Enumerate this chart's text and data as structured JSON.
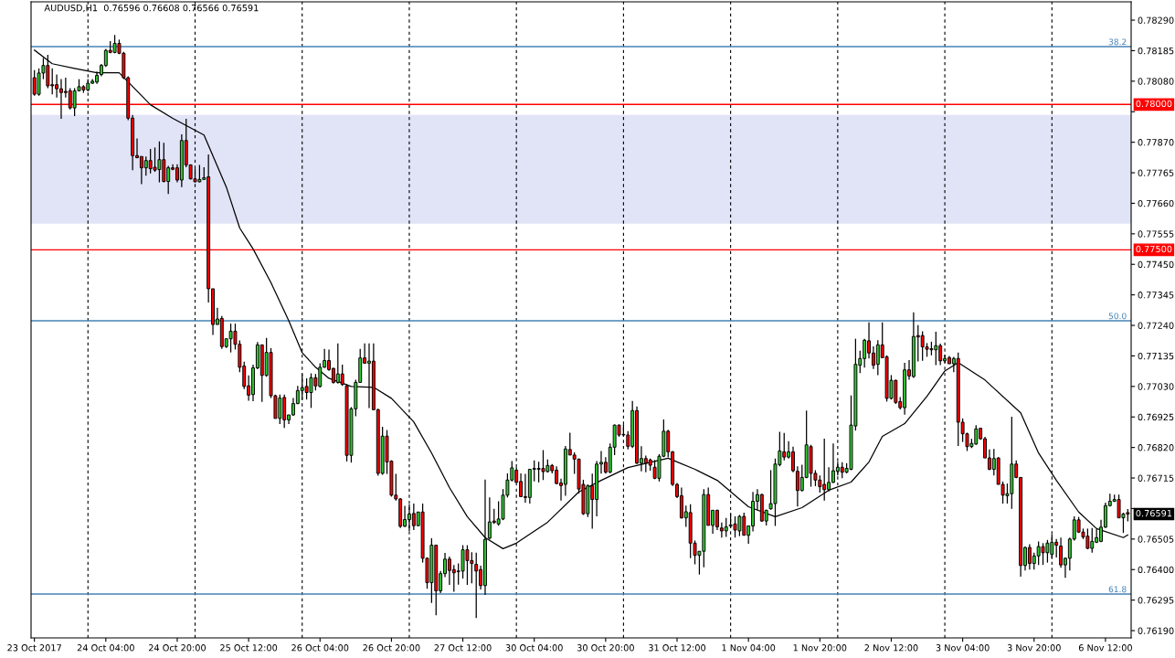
{
  "chart_data": {
    "type": "candlestick",
    "title": "AUDUSD,H1  0.76596 0.76608 0.76566 0.76591",
    "categories": [
      "23 Oct 2017",
      null,
      null,
      null,
      null,
      null,
      null,
      null,
      null,
      null,
      null,
      null,
      null,
      null,
      null,
      null,
      "24 Oct 04:00",
      null,
      null,
      null,
      null,
      null,
      null,
      null,
      null,
      null,
      null,
      null,
      null,
      null,
      null,
      null,
      "24 Oct 20:00",
      null,
      null,
      null,
      null,
      null,
      null,
      null,
      null,
      null,
      null,
      null,
      null,
      null,
      null,
      null,
      "25 Oct 12:00",
      null,
      null,
      null,
      null,
      null,
      null,
      null,
      null,
      null,
      null,
      null,
      null,
      null,
      null,
      null,
      "26 Oct 04:00",
      null,
      null,
      null,
      null,
      null,
      null,
      null,
      null,
      null,
      null,
      null,
      null,
      null,
      null,
      null,
      "26 Oct 20:00",
      null,
      null,
      null,
      null,
      null,
      null,
      null,
      null,
      null,
      null,
      null,
      null,
      null,
      null,
      null,
      "27 Oct 12:00",
      null,
      null,
      null,
      null,
      null,
      null,
      null,
      null,
      null,
      null,
      null,
      null,
      null,
      null,
      null,
      "30 Oct 04:00",
      null,
      null,
      null,
      null,
      null,
      null,
      null,
      null,
      null,
      null,
      null,
      null,
      null,
      null,
      null,
      "30 Oct 20:00",
      null,
      null,
      null,
      null,
      null,
      null,
      null,
      null,
      null,
      null,
      null,
      null,
      null,
      null,
      null,
      "31 Oct 12:00",
      null,
      null,
      null,
      null,
      null,
      null,
      null,
      null,
      null,
      null,
      null,
      null,
      null,
      null,
      null,
      "1 Nov 04:00",
      null,
      null,
      null,
      null,
      null,
      null,
      null,
      null,
      null,
      null,
      null,
      null,
      null,
      null,
      null,
      "1 Nov 20:00",
      null,
      null,
      null,
      null,
      null,
      null,
      null,
      null,
      null,
      null,
      null,
      null,
      null,
      null,
      null,
      "2 Nov 12:00",
      null,
      null,
      null,
      null,
      null,
      null,
      null,
      null,
      null,
      null,
      null,
      null,
      null,
      null,
      null,
      "3 Nov 04:00",
      null,
      null,
      null,
      null,
      null,
      null,
      null,
      null,
      null,
      null,
      null,
      null,
      null,
      null,
      null,
      "3 Nov 20:00",
      null,
      null,
      null,
      null,
      null,
      null,
      null,
      null,
      null,
      null,
      null,
      null,
      null,
      null,
      null,
      "6 Nov 12:00",
      null,
      null,
      null,
      null,
      null
    ],
    "ylim": [
      0.76165,
      0.78353
    ],
    "yticks": [
      {
        "value": 0.7829,
        "label": "0.78290"
      },
      {
        "value": 0.78185,
        "label": "0.78185"
      },
      {
        "value": 0.7808,
        "label": "0.78080"
      },
      {
        "value": 0.77975,
        "label": null
      },
      {
        "value": 0.7787,
        "label": "0.77870"
      },
      {
        "value": 0.77765,
        "label": "0.77765"
      },
      {
        "value": 0.7766,
        "label": "0.77660"
      },
      {
        "value": 0.77555,
        "label": "0.77555"
      },
      {
        "value": 0.7745,
        "label": "0.77450"
      },
      {
        "value": 0.77345,
        "label": "0.77345"
      },
      {
        "value": 0.7724,
        "label": "0.77240"
      },
      {
        "value": 0.77135,
        "label": "0.77135"
      },
      {
        "value": 0.7703,
        "label": "0.77030"
      },
      {
        "value": 0.76925,
        "label": "0.76925"
      },
      {
        "value": 0.7682,
        "label": "0.76820"
      },
      {
        "value": 0.76715,
        "label": "0.76715"
      },
      {
        "value": 0.7661,
        "label": null
      },
      {
        "value": 0.76505,
        "label": "0.76505"
      },
      {
        "value": 0.764,
        "label": "0.76400"
      },
      {
        "value": 0.76295,
        "label": "0.76295"
      },
      {
        "value": 0.7619,
        "label": "0.76190"
      }
    ],
    "bands": [
      {
        "axis": "y",
        "from": 0.7759,
        "to": 0.77964,
        "color": "#e1e3f7"
      }
    ],
    "ref_lines": [
      {
        "axis": "y",
        "value": 0.78,
        "label": "0.78000",
        "color": "#ff0000"
      },
      {
        "axis": "y",
        "value": 0.775,
        "label": "0.77500",
        "color": "#ff0000"
      },
      {
        "axis": "y",
        "value": 0.78199,
        "color": "#4682b4"
      },
      {
        "axis": "y",
        "value": 0.77256,
        "color": "#4682b4"
      },
      {
        "axis": "y",
        "value": 0.76316,
        "color": "#4682b4"
      }
    ],
    "annotations": [
      "0.76591",
      {
        "text": "38.2",
        "y": 0.78199
      },
      {
        "text": "50.0",
        "y": 0.77256
      },
      {
        "text": "61.8",
        "y": 0.76316
      }
    ],
    "ohlc": [
      [
        0.78092,
        0.78118,
        0.7803,
        0.78035
      ],
      [
        0.78035,
        0.78124,
        0.7803,
        0.78108
      ],
      [
        0.78108,
        0.7816,
        0.78087,
        0.78134
      ],
      [
        0.78134,
        0.78171,
        0.78056,
        0.78064
      ],
      [
        0.78068,
        0.78124,
        0.78035,
        0.78064
      ],
      [
        0.78068,
        0.78103,
        0.78024,
        0.78054
      ],
      [
        0.78054,
        0.78087,
        0.77951,
        0.78041
      ],
      [
        0.78045,
        0.78092,
        0.78024,
        0.78041
      ],
      [
        0.78047,
        0.78056,
        0.77983,
        0.77988
      ],
      [
        0.77988,
        0.78056,
        0.7796,
        0.78047
      ],
      [
        0.78047,
        0.78087,
        0.78045,
        0.78061
      ],
      [
        0.78061,
        0.78066,
        0.7804,
        0.7805
      ],
      [
        0.7805,
        0.78087,
        0.78045,
        0.78073
      ],
      [
        0.78073,
        0.78087,
        0.78071,
        0.7808
      ],
      [
        0.78077,
        0.78113,
        0.78071,
        0.781
      ],
      [
        0.78103,
        0.78139,
        0.78097,
        0.78134
      ],
      [
        0.78134,
        0.78191,
        0.78129,
        0.78186
      ],
      [
        0.78186,
        0.78218,
        0.78176,
        0.78179
      ],
      [
        0.78179,
        0.78239,
        0.78176,
        0.7821
      ],
      [
        0.7821,
        0.78223,
        0.78173,
        0.78176
      ],
      [
        0.78176,
        0.78181,
        0.78087,
        0.78092
      ],
      [
        0.78092,
        0.78097,
        0.77946,
        0.77953
      ],
      [
        0.77953,
        0.77964,
        0.77774,
        0.77824
      ],
      [
        0.77824,
        0.77883,
        0.77815,
        0.77817
      ],
      [
        0.77821,
        0.77821,
        0.77726,
        0.77782
      ],
      [
        0.77782,
        0.77821,
        0.77755,
        0.77807
      ],
      [
        0.77807,
        0.77847,
        0.77763,
        0.77779
      ],
      [
        0.77784,
        0.77852,
        0.77768,
        0.77774
      ],
      [
        0.77776,
        0.77873,
        0.77732,
        0.7781
      ],
      [
        0.7781,
        0.77868,
        0.77732,
        0.77735
      ],
      [
        0.77735,
        0.77789,
        0.77692,
        0.77782
      ],
      [
        0.77782,
        0.77794,
        0.77774,
        0.77777
      ],
      [
        0.77782,
        0.77794,
        0.77732,
        0.7774
      ],
      [
        0.7774,
        0.77897,
        0.77716,
        0.77876
      ],
      [
        0.77876,
        0.77951,
        0.77784,
        0.77792
      ],
      [
        0.77792,
        0.77794,
        0.77742,
        0.77744
      ],
      [
        0.77744,
        0.77779,
        0.77732,
        0.77734
      ],
      [
        0.77734,
        0.77792,
        0.77732,
        0.77742
      ],
      [
        0.77742,
        0.77784,
        0.77742,
        0.77748
      ],
      [
        0.77751,
        0.77828,
        0.77319,
        0.77366
      ],
      [
        0.77366,
        0.77366,
        0.77207,
        0.77243
      ],
      [
        0.77243,
        0.77301,
        0.77243,
        0.77262
      ],
      [
        0.77264,
        0.77272,
        0.77159,
        0.77167
      ],
      [
        0.77167,
        0.77194,
        0.77162,
        0.77194
      ],
      [
        0.77194,
        0.77246,
        0.77147,
        0.7722
      ],
      [
        0.7722,
        0.77246,
        0.77157,
        0.77175
      ],
      [
        0.77175,
        0.77188,
        0.77079,
        0.77096
      ],
      [
        0.771,
        0.77115,
        0.77021,
        0.7703
      ],
      [
        0.77032,
        0.77068,
        0.76981,
        0.77
      ],
      [
        0.77002,
        0.77105,
        0.76979,
        0.77094
      ],
      [
        0.77094,
        0.77183,
        0.77089,
        0.77173
      ],
      [
        0.77173,
        0.77173,
        0.76977,
        0.77068
      ],
      [
        0.77068,
        0.77197,
        0.77063,
        0.77147
      ],
      [
        0.77147,
        0.77162,
        0.7699,
        0.76998
      ],
      [
        0.76998,
        0.77002,
        0.7692,
        0.7692
      ],
      [
        0.7692,
        0.77002,
        0.76901,
        0.7699
      ],
      [
        0.76992,
        0.77002,
        0.76887,
        0.76915
      ],
      [
        0.76915,
        0.76932,
        0.76901,
        0.76932
      ],
      [
        0.76932,
        0.7699,
        0.76929,
        0.76971
      ],
      [
        0.76971,
        0.77032,
        0.76969,
        0.77016
      ],
      [
        0.77016,
        0.77073,
        0.76985,
        0.77026
      ],
      [
        0.7703,
        0.77058,
        0.76985,
        0.77009
      ],
      [
        0.77009,
        0.77075,
        0.76956,
        0.7706
      ],
      [
        0.7706,
        0.77073,
        0.77016,
        0.77032
      ],
      [
        0.7703,
        0.7711,
        0.77026,
        0.77096
      ],
      [
        0.77096,
        0.77159,
        0.77094,
        0.77119
      ],
      [
        0.77119,
        0.77157,
        0.77084,
        0.77088
      ],
      [
        0.77092,
        0.77094,
        0.7704,
        0.77044
      ],
      [
        0.77044,
        0.77178,
        0.7704,
        0.77073
      ],
      [
        0.77073,
        0.77105,
        0.77032,
        0.77037
      ],
      [
        0.77032,
        0.77037,
        0.76772,
        0.76793
      ],
      [
        0.76793,
        0.76959,
        0.76768,
        0.76953
      ],
      [
        0.76953,
        0.77053,
        0.76927,
        0.77044
      ],
      [
        0.77044,
        0.77159,
        0.77042,
        0.77128
      ],
      [
        0.77128,
        0.77178,
        0.7711,
        0.7711
      ],
      [
        0.7711,
        0.77178,
        0.76956,
        0.77117
      ],
      [
        0.77117,
        0.77178,
        0.76948,
        0.7695
      ],
      [
        0.7695,
        0.76953,
        0.76723,
        0.76731
      ],
      [
        0.76731,
        0.76891,
        0.76726,
        0.76859
      ],
      [
        0.76859,
        0.7688,
        0.76729,
        0.7677
      ],
      [
        0.76773,
        0.76776,
        0.76651,
        0.76656
      ],
      [
        0.76656,
        0.76729,
        0.76637,
        0.76643
      ],
      [
        0.76643,
        0.76646,
        0.76543,
        0.76549
      ],
      [
        0.76549,
        0.76619,
        0.76546,
        0.76572
      ],
      [
        0.76572,
        0.76625,
        0.76533,
        0.76591
      ],
      [
        0.76593,
        0.76627,
        0.76536,
        0.76551
      ],
      [
        0.76551,
        0.76598,
        0.76549,
        0.76598
      ],
      [
        0.76598,
        0.76627,
        0.76424,
        0.76439
      ],
      [
        0.76439,
        0.76442,
        0.76334,
        0.76355
      ],
      [
        0.76355,
        0.76508,
        0.76285,
        0.76484
      ],
      [
        0.76484,
        0.76484,
        0.76243,
        0.76327
      ],
      [
        0.76327,
        0.76395,
        0.76319,
        0.76386
      ],
      [
        0.76386,
        0.76457,
        0.76374,
        0.76436
      ],
      [
        0.76436,
        0.76445,
        0.76347,
        0.76397
      ],
      [
        0.764,
        0.76416,
        0.76324,
        0.76389
      ],
      [
        0.76395,
        0.76421,
        0.76348,
        0.76393
      ],
      [
        0.76395,
        0.76484,
        0.76369,
        0.76468
      ],
      [
        0.76468,
        0.76484,
        0.76347,
        0.76431
      ],
      [
        0.76431,
        0.7646,
        0.76353,
        0.76421
      ],
      [
        0.76418,
        0.76458,
        0.76233,
        0.76395
      ],
      [
        0.764,
        0.76413,
        0.76332,
        0.76345
      ],
      [
        0.76345,
        0.7671,
        0.76313,
        0.76504
      ],
      [
        0.76508,
        0.76648,
        0.76504,
        0.76564
      ],
      [
        0.76567,
        0.76609,
        0.76557,
        0.76562
      ],
      [
        0.76557,
        0.76635,
        0.76551,
        0.76574
      ],
      [
        0.76574,
        0.76677,
        0.7657,
        0.76656
      ],
      [
        0.76656,
        0.76731,
        0.76648,
        0.76708
      ],
      [
        0.76708,
        0.76773,
        0.76703,
        0.7675
      ],
      [
        0.76742,
        0.76752,
        0.767,
        0.767
      ],
      [
        0.76703,
        0.76731,
        0.76651,
        0.76651
      ],
      [
        0.76651,
        0.76729,
        0.7663,
        0.76648
      ],
      [
        0.76648,
        0.76745,
        0.76627,
        0.76745
      ],
      [
        0.76745,
        0.76776,
        0.76703,
        0.76748
      ],
      [
        0.76748,
        0.76771,
        0.767,
        0.76745
      ],
      [
        0.76748,
        0.76811,
        0.76708,
        0.76737
      ],
      [
        0.76737,
        0.76779,
        0.76734,
        0.76758
      ],
      [
        0.76758,
        0.76763,
        0.76731,
        0.7674
      ],
      [
        0.76742,
        0.76755,
        0.76693,
        0.76696
      ],
      [
        0.76698,
        0.76713,
        0.76637,
        0.76689
      ],
      [
        0.76693,
        0.76825,
        0.76654,
        0.76815
      ],
      [
        0.76813,
        0.76871,
        0.76794,
        0.76794
      ],
      [
        0.76794,
        0.76803,
        0.76729,
        0.7678
      ],
      [
        0.7678,
        0.76782,
        0.76662,
        0.76677
      ],
      [
        0.76693,
        0.76709,
        0.76588,
        0.76592
      ],
      [
        0.76592,
        0.76693,
        0.76581,
        0.76688
      ],
      [
        0.76688,
        0.7673,
        0.76541,
        0.76641
      ],
      [
        0.76641,
        0.76773,
        0.76583,
        0.76763
      ],
      [
        0.76763,
        0.76808,
        0.7673,
        0.76769
      ],
      [
        0.76769,
        0.76787,
        0.7673,
        0.76735
      ],
      [
        0.76735,
        0.76834,
        0.76732,
        0.76821
      ],
      [
        0.76821,
        0.76899,
        0.76794,
        0.76897
      ],
      [
        0.76897,
        0.76899,
        0.76857,
        0.76863
      ],
      [
        0.76865,
        0.76899,
        0.7686,
        0.76863
      ],
      [
        0.76863,
        0.76876,
        0.76813,
        0.76824
      ],
      [
        0.76824,
        0.7698,
        0.76818,
        0.76947
      ],
      [
        0.76947,
        0.76961,
        0.76763,
        0.76766
      ],
      [
        0.76766,
        0.76824,
        0.76738,
        0.76782
      ],
      [
        0.76782,
        0.76792,
        0.76735,
        0.76766
      ],
      [
        0.76777,
        0.76782,
        0.7674,
        0.76759
      ],
      [
        0.76752,
        0.76777,
        0.76711,
        0.76714
      ],
      [
        0.76714,
        0.76797,
        0.76703,
        0.7679
      ],
      [
        0.7679,
        0.76916,
        0.76787,
        0.76876
      ],
      [
        0.76876,
        0.76881,
        0.76787,
        0.76805
      ],
      [
        0.76805,
        0.76808,
        0.76688,
        0.76693
      ],
      [
        0.76693,
        0.76698,
        0.76646,
        0.76651
      ],
      [
        0.76654,
        0.76682,
        0.76575,
        0.76578
      ],
      [
        0.76578,
        0.7662,
        0.76547,
        0.76599
      ],
      [
        0.76596,
        0.76625,
        0.76439,
        0.76491
      ],
      [
        0.76491,
        0.765,
        0.76418,
        0.76449
      ],
      [
        0.76449,
        0.76463,
        0.76383,
        0.76463
      ],
      [
        0.76463,
        0.76677,
        0.76408,
        0.76658
      ],
      [
        0.76658,
        0.76682,
        0.76552,
        0.76552
      ],
      [
        0.76552,
        0.76604,
        0.76523,
        0.76604
      ],
      [
        0.76604,
        0.76606,
        0.76536,
        0.76547
      ],
      [
        0.76543,
        0.76562,
        0.7651,
        0.76533
      ],
      [
        0.76533,
        0.76578,
        0.76512,
        0.76547
      ],
      [
        0.7655,
        0.76594,
        0.76543,
        0.76554
      ],
      [
        0.76557,
        0.76583,
        0.7651,
        0.76536
      ],
      [
        0.76533,
        0.76588,
        0.76515,
        0.76583
      ],
      [
        0.76583,
        0.76596,
        0.76518,
        0.76518
      ],
      [
        0.76518,
        0.76552,
        0.76489,
        0.7655
      ],
      [
        0.7655,
        0.76667,
        0.76531,
        0.76635
      ],
      [
        0.76635,
        0.76677,
        0.76604,
        0.76658
      ],
      [
        0.76658,
        0.76661,
        0.76564,
        0.76567
      ],
      [
        0.76567,
        0.76606,
        0.76552,
        0.76604
      ],
      [
        0.76609,
        0.76742,
        0.76606,
        0.76627
      ],
      [
        0.76627,
        0.76782,
        0.7655,
        0.76763
      ],
      [
        0.76761,
        0.76874,
        0.76755,
        0.76808
      ],
      [
        0.76805,
        0.7687,
        0.76776,
        0.76787
      ],
      [
        0.76787,
        0.76842,
        0.76782,
        0.76805
      ],
      [
        0.76805,
        0.76823,
        0.76735,
        0.7674
      ],
      [
        0.76738,
        0.76755,
        0.76617,
        0.76672
      ],
      [
        0.76672,
        0.76761,
        0.76669,
        0.76717
      ],
      [
        0.76717,
        0.76947,
        0.76714,
        0.76829
      ],
      [
        0.76823,
        0.76829,
        0.76685,
        0.76731
      ],
      [
        0.76731,
        0.76742,
        0.76687,
        0.76708
      ],
      [
        0.76708,
        0.76724,
        0.76665,
        0.76685
      ],
      [
        0.76693,
        0.7685,
        0.76637,
        0.76675
      ],
      [
        0.76675,
        0.76752,
        0.76669,
        0.767
      ],
      [
        0.767,
        0.76834,
        0.76698,
        0.7674
      ],
      [
        0.76738,
        0.76771,
        0.76724,
        0.76752
      ],
      [
        0.76752,
        0.76769,
        0.76714,
        0.76735
      ],
      [
        0.76735,
        0.76766,
        0.76731,
        0.76748
      ],
      [
        0.76745,
        0.76999,
        0.76742,
        0.76897
      ],
      [
        0.76894,
        0.77194,
        0.76878,
        0.77106
      ],
      [
        0.77103,
        0.77153,
        0.77076,
        0.77126
      ],
      [
        0.77126,
        0.77194,
        0.77095,
        0.77189
      ],
      [
        0.77187,
        0.7725,
        0.77126,
        0.77145
      ],
      [
        0.77145,
        0.77168,
        0.7709,
        0.77103
      ],
      [
        0.77106,
        0.77189,
        0.77069,
        0.77173
      ],
      [
        0.77173,
        0.7725,
        0.77129,
        0.77129
      ],
      [
        0.77132,
        0.77137,
        0.76978,
        0.76989
      ],
      [
        0.76989,
        0.77069,
        0.76985,
        0.77051
      ],
      [
        0.77051,
        0.77053,
        0.7697,
        0.76975
      ],
      [
        0.76978,
        0.76993,
        0.76951,
        0.76957
      ],
      [
        0.76957,
        0.77111,
        0.76933,
        0.77087
      ],
      [
        0.77087,
        0.77121,
        0.77053,
        0.77066
      ],
      [
        0.77064,
        0.77285,
        0.77059,
        0.77202
      ],
      [
        0.77205,
        0.77241,
        0.77116,
        0.772
      ],
      [
        0.77205,
        0.7722,
        0.77118,
        0.77166
      ],
      [
        0.77166,
        0.77179,
        0.77132,
        0.77158
      ],
      [
        0.7716,
        0.77184,
        0.77137,
        0.77156
      ],
      [
        0.77156,
        0.77218,
        0.77103,
        0.7717
      ],
      [
        0.7717,
        0.77177,
        0.77103,
        0.77118
      ],
      [
        0.77118,
        0.77139,
        0.77111,
        0.77126
      ],
      [
        0.77129,
        0.77135,
        0.77108,
        0.77108
      ],
      [
        0.77108,
        0.77132,
        0.77079,
        0.77126
      ],
      [
        0.77126,
        0.77147,
        0.76825,
        0.76907
      ],
      [
        0.76907,
        0.7692,
        0.76839,
        0.76867
      ],
      [
        0.76867,
        0.76871,
        0.76808,
        0.76823
      ],
      [
        0.76823,
        0.7685,
        0.76818,
        0.76834
      ],
      [
        0.76832,
        0.76897,
        0.76829,
        0.76884
      ],
      [
        0.76886,
        0.76888,
        0.76846,
        0.7685
      ],
      [
        0.7685,
        0.76857,
        0.76784,
        0.76784
      ],
      [
        0.76784,
        0.76813,
        0.76742,
        0.76745
      ],
      [
        0.76745,
        0.76815,
        0.76724,
        0.76782
      ],
      [
        0.76784,
        0.76787,
        0.76693,
        0.76693
      ],
      [
        0.76693,
        0.76703,
        0.76627,
        0.76656
      ],
      [
        0.76654,
        0.76696,
        0.76627,
        0.76661
      ],
      [
        0.76661,
        0.76926,
        0.76609,
        0.76763
      ],
      [
        0.76763,
        0.76776,
        0.76714,
        0.76717
      ],
      [
        0.76717,
        0.76717,
        0.76376,
        0.76414
      ],
      [
        0.76414,
        0.76479,
        0.76397,
        0.76476
      ],
      [
        0.76476,
        0.76487,
        0.764,
        0.76421
      ],
      [
        0.76421,
        0.76458,
        0.764,
        0.76447
      ],
      [
        0.76447,
        0.76497,
        0.76416,
        0.76479
      ],
      [
        0.76479,
        0.76491,
        0.76416,
        0.76458
      ],
      [
        0.76458,
        0.76502,
        0.76424,
        0.76491
      ],
      [
        0.76452,
        0.7652,
        0.76437,
        0.76494
      ],
      [
        0.76494,
        0.76505,
        0.76442,
        0.76484
      ],
      [
        0.76481,
        0.7651,
        0.76406,
        0.76416
      ],
      [
        0.76416,
        0.76442,
        0.76372,
        0.76439
      ],
      [
        0.76439,
        0.7651,
        0.76397,
        0.76505
      ],
      [
        0.76505,
        0.76583,
        0.765,
        0.76571
      ],
      [
        0.76571,
        0.76581,
        0.76526,
        0.76529
      ],
      [
        0.76529,
        0.76541,
        0.76505,
        0.76512
      ],
      [
        0.76515,
        0.76541,
        0.7647,
        0.76473
      ],
      [
        0.76473,
        0.76543,
        0.76458,
        0.76497
      ],
      [
        0.76494,
        0.76539,
        0.76491,
        0.7651
      ],
      [
        0.76497,
        0.76571,
        0.76494,
        0.76546
      ],
      [
        0.76546,
        0.7663,
        0.76543,
        0.7662
      ],
      [
        0.7662,
        0.76661,
        0.76617,
        0.76635
      ],
      [
        0.76635,
        0.76658,
        0.76633,
        0.76641
      ],
      [
        0.76641,
        0.76658,
        0.76578,
        0.76578
      ],
      [
        0.76578,
        0.76596,
        0.76526,
        0.76591
      ],
      [
        0.76596,
        0.76608,
        0.76566,
        0.76591
      ]
    ],
    "colors": [
      "#ff0000",
      "#32cd32",
      "#32cd32",
      "#ff0000",
      "#ff0000",
      "#ff0000",
      "#ff0000",
      "#ff0000",
      "#ff0000",
      "#32cd32",
      "#32cd32",
      "#ff0000",
      "#32cd32",
      "#32cd32",
      "#32cd32",
      "#32cd32",
      "#32cd32",
      "#ff0000",
      "#32cd32",
      "#ff0000",
      "#ff0000",
      "#ff0000",
      "#ff0000",
      "#ff0000",
      "#ff0000",
      "#32cd32",
      "#ff0000",
      "#ff0000",
      "#32cd32",
      "#ff0000",
      "#32cd32",
      "#ff0000",
      "#ff0000",
      "#32cd32",
      "#ff0000",
      "#ff0000",
      "#ff0000",
      "#32cd32",
      "#32cd32",
      "#ff0000",
      "#ff0000",
      "#32cd32",
      "#ff0000",
      "#32cd32",
      "#32cd32",
      "#ff0000",
      "#ff0000",
      "#ff0000",
      "#ff0000",
      "#32cd32",
      "#32cd32",
      "#ff0000",
      "#32cd32",
      "#ff0000",
      "#ff0000",
      "#32cd32",
      "#ff0000",
      "#32cd32",
      "#32cd32",
      "#32cd32",
      "#32cd32",
      "#ff0000",
      "#32cd32",
      "#ff0000",
      "#32cd32",
      "#32cd32",
      "#ff0000",
      "#ff0000",
      "#32cd32",
      "#ff0000",
      "#ff0000",
      "#32cd32",
      "#32cd32",
      "#32cd32",
      "#ff0000",
      "#32cd32",
      "#ff0000",
      "#ff0000",
      "#32cd32",
      "#ff0000",
      "#ff0000",
      "#ff0000",
      "#ff0000",
      "#32cd32",
      "#32cd32",
      "#ff0000",
      "#32cd32",
      "#ff0000",
      "#ff0000",
      "#32cd32",
      "#ff0000",
      "#32cd32",
      "#32cd32",
      "#ff0000",
      "#ff0000",
      "#ff0000",
      "#32cd32",
      "#ff0000",
      "#ff0000",
      "#ff0000",
      "#ff0000",
      "#32cd32",
      "#32cd32",
      "#ff0000",
      "#32cd32",
      "#32cd32",
      "#32cd32",
      "#32cd32",
      "#ff0000",
      "#ff0000",
      "#ff0000",
      "#32cd32",
      "#32cd32",
      "#ff0000",
      "#ff0000",
      "#32cd32",
      "#ff0000",
      "#ff0000",
      "#ff0000",
      "#32cd32",
      "#ff0000",
      "#ff0000",
      "#ff0000",
      "#ff0000",
      "#32cd32",
      "#ff0000",
      "#32cd32",
      "#32cd32",
      "#ff0000",
      "#32cd32",
      "#32cd32",
      "#ff0000",
      "#ff0000",
      "#ff0000",
      "#32cd32",
      "#ff0000",
      "#32cd32",
      "#ff0000",
      "#ff0000",
      "#ff0000",
      "#32cd32",
      "#32cd32",
      "#ff0000",
      "#ff0000",
      "#ff0000",
      "#ff0000",
      "#32cd32",
      "#ff0000",
      "#ff0000",
      "#32cd32",
      "#32cd32",
      "#ff0000",
      "#32cd32",
      "#ff0000",
      "#ff0000",
      "#32cd32",
      "#32cd32",
      "#ff0000",
      "#32cd32",
      "#ff0000",
      "#32cd32",
      "#32cd32",
      "#32cd32",
      "#ff0000",
      "#32cd32",
      "#32cd32",
      "#32cd32",
      "#32cd32",
      "#ff0000",
      "#32cd32",
      "#ff0000",
      "#ff0000",
      "#32cd32",
      "#32cd32",
      "#ff0000",
      "#ff0000",
      "#ff0000",
      "#ff0000",
      "#32cd32",
      "#32cd32",
      "#32cd32",
      "#ff0000",
      "#32cd32",
      "#32cd32",
      "#32cd32",
      "#32cd32",
      "#32cd32",
      "#ff0000",
      "#ff0000",
      "#32cd32",
      "#ff0000",
      "#ff0000",
      "#32cd32",
      "#ff0000",
      "#ff0000",
      "#32cd32",
      "#ff0000",
      "#32cd32",
      "#ff0000",
      "#ff0000",
      "#ff0000",
      "#ff0000",
      "#32cd32",
      "#ff0000",
      "#32cd32",
      "#ff0000",
      "#32cd32",
      "#ff0000",
      "#ff0000",
      "#ff0000",
      "#32cd32",
      "#32cd32",
      "#ff0000",
      "#ff0000",
      "#ff0000",
      "#32cd32",
      "#ff0000",
      "#ff0000",
      "#32cd32",
      "#32cd32",
      "#ff0000",
      "#ff0000",
      "#32cd32",
      "#ff0000",
      "#32cd32",
      "#32cd32",
      "#ff0000",
      "#32cd32",
      "#32cd32",
      "#ff0000",
      "#ff0000",
      "#32cd32",
      "#32cd32",
      "#32cd32",
      "#ff0000",
      "#ff0000",
      "#ff0000",
      "#32cd32",
      "#32cd32",
      "#32cd32",
      "#32cd32",
      "#32cd32",
      "#32cd32",
      "#ff0000",
      "#32cd32",
      "#ff0000"
    ],
    "series": [
      {
        "type": "line",
        "color": "#000000",
        "values": [
          0.78187,
          null,
          null,
          null,
          0.7814,
          null,
          null,
          null,
          null,
          0.78124,
          null,
          null,
          null,
          null,
          0.78109,
          null,
          null,
          null,
          null,
          0.78109,
          null,
          null,
          null,
          0.78046,
          null,
          null,
          0.77999,
          null,
          null,
          null,
          null,
          0.77952,
          null,
          null,
          null,
          null,
          null,
          null,
          0.77895,
          null,
          null,
          null,
          null,
          0.77716,
          null,
          null,
          0.77575,
          null,
          null,
          0.77503,
          null,
          null,
          null,
          0.77387,
          null,
          null,
          null,
          0.77256,
          null,
          null,
          0.77146,
          null,
          null,
          0.77096,
          null,
          null,
          0.77058,
          null,
          null,
          null,
          null,
          0.7703,
          null,
          null,
          null,
          null,
          0.77027,
          null,
          null,
          null,
          0.76989,
          null,
          null,
          null,
          null,
          0.76908,
          null,
          null,
          null,
          0.76801,
          null,
          null,
          null,
          0.76682,
          null,
          null,
          null,
          0.76582,
          null,
          null,
          null,
          0.7651,
          null,
          null,
          null,
          0.76472,
          null,
          null,
          0.76491,
          null,
          null,
          null,
          null,
          null,
          null,
          0.76563,
          null,
          null,
          null,
          null,
          null,
          null,
          0.76667,
          null,
          null,
          null,
          null,
          0.76707,
          null,
          null,
          null,
          null,
          null,
          0.76751,
          null,
          null,
          null,
          null,
          null,
          null,
          null,
          null,
          0.76783,
          null,
          null,
          null,
          null,
          null,
          0.76745,
          null,
          null,
          null,
          null,
          0.76707,
          null,
          null,
          null,
          null,
          null,
          null,
          0.76616,
          null,
          null,
          null,
          null,
          null,
          0.76582,
          null,
          null,
          null,
          null,
          null,
          0.76613,
          null,
          null,
          null,
          null,
          null,
          0.76673,
          null,
          null,
          null,
          null,
          0.76701,
          null,
          null,
          null,
          0.7677,
          null,
          null,
          0.76858,
          null,
          null,
          null,
          null,
          0.76902,
          null,
          null,
          null,
          null,
          0.76996,
          null,
          null,
          null,
          0.77083,
          null,
          null,
          0.77112,
          null,
          null,
          null,
          null,
          null,
          0.77052,
          null,
          null,
          null,
          null,
          null,
          null,
          null,
          0.76939,
          null,
          null,
          null,
          0.76801,
          null,
          null,
          null,
          0.76707,
          null,
          null,
          null,
          null,
          0.76598,
          null,
          null,
          null,
          0.76541,
          null,
          null,
          null,
          null,
          null,
          0.7651,
          0.76519
        ]
      }
    ]
  }
}
